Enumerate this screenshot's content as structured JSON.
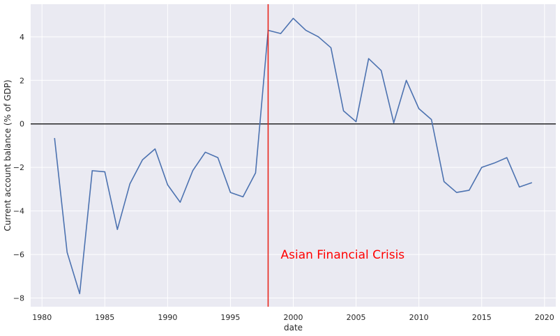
{
  "chart_data": {
    "type": "line",
    "xlabel": "date",
    "ylabel": "Current account balance (% of GDP)",
    "xlim": [
      1979.1,
      2020.9
    ],
    "ylim": [
      -8.4,
      5.5
    ],
    "x_ticks": [
      1980,
      1985,
      1990,
      1995,
      2000,
      2005,
      2010,
      2015,
      2020
    ],
    "y_ticks": [
      -8,
      -6,
      -4,
      -2,
      0,
      2,
      4
    ],
    "grid": true,
    "background": "#eaeaf2",
    "series": [
      {
        "color": "#4c72b0",
        "x": [
          1981,
          1982,
          1983,
          1984,
          1985,
          1986,
          1987,
          1988,
          1989,
          1990,
          1991,
          1992,
          1993,
          1994,
          1995,
          1996,
          1997,
          1998,
          1999,
          2000,
          2001,
          2002,
          2003,
          2004,
          2005,
          2006,
          2007,
          2008,
          2009,
          2010,
          2011,
          2012,
          2013,
          2014,
          2015,
          2016,
          2017,
          2018,
          2019
        ],
        "y": [
          -0.65,
          -5.9,
          -7.8,
          -2.15,
          -2.2,
          -4.85,
          -2.75,
          -1.65,
          -1.15,
          -2.8,
          -3.6,
          -2.15,
          -1.3,
          -1.55,
          -3.15,
          -3.35,
          -2.25,
          4.3,
          4.15,
          4.85,
          4.3,
          4.0,
          3.5,
          0.6,
          0.1,
          3.0,
          2.45,
          0.05,
          2.0,
          0.7,
          0.2,
          -2.65,
          -3.15,
          -3.05,
          -2.0,
          -1.8,
          -1.55,
          -2.9,
          -2.7
        ]
      }
    ],
    "hline": {
      "y": 0,
      "color": "#262626"
    },
    "vline": {
      "x": 1998,
      "color": "#e8261c"
    },
    "annotation": {
      "text": "Asian Financial Crisis",
      "x": 1999,
      "y": -6,
      "color": "#ff0000"
    }
  }
}
